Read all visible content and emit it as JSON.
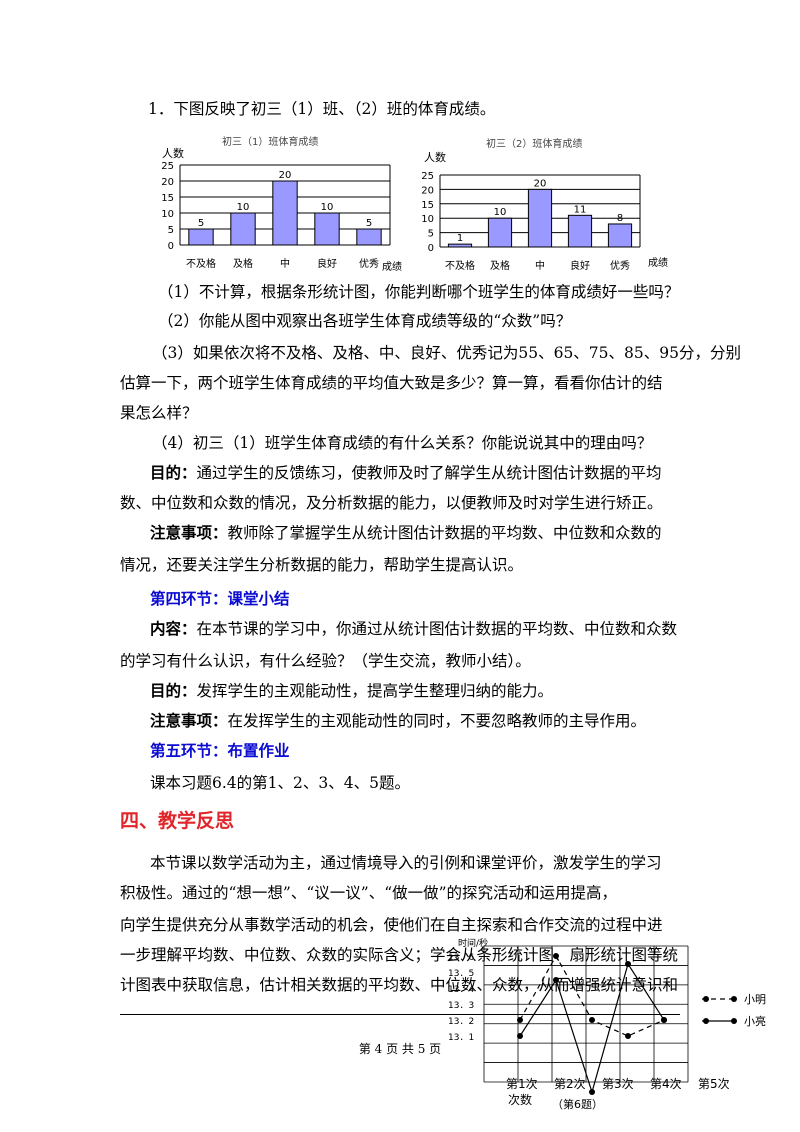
{
  "q1": {
    "title": "1．下图反映了初三（1）班、（2）班的体育成绩。",
    "sub1": "（1）不计算，根据条形统计图，你能判断哪个班学生的体育成绩好一些吗？",
    "sub2": "（2）你能从图中观察出各班学生体育成绩等级的“众数”吗？",
    "sub3_line1": "（3）如果依次将不及格、及格、中、良好、优秀记为55、65、75、85、95分，分别",
    "sub3_line2": "估算一下，两个班学生体育成绩的平均值大致是多少？算一算，看看你估计的结",
    "sub3_line3": "果怎么样？",
    "sub4": "（4）初三（1）班学生体育成绩的有什么关系？你能说说其中的理由吗？"
  },
  "purpose1": {
    "label": "目的：",
    "line1": "通过学生的反馈练习，使教师及时了解学生从统计图估计数据的平均",
    "line2": "数、中位数和众数的情况，及分析数据的能力，以便教师及时对学生进行矫正。"
  },
  "note1": {
    "label": "注意事项：",
    "line1": "教师除了掌握学生从统计图估计数据的平均数、中位数和众数的",
    "line2": "情况，还要关注学生分析数据的能力，帮助学生提高认识。"
  },
  "section4": {
    "heading": "第四环节：课堂小结",
    "content_label": "内容：",
    "content_line1": "在本节课的学习中，你通过从统计图估计数据的平均数、中位数和众数",
    "content_line2": "的学习有什么认识，有什么经验？（学生交流，教师小结）。",
    "purpose_label": "目的：",
    "purpose_text": "发挥学生的主观能动性，提高学生整理归纳的能力。",
    "note_label": "注意事项：",
    "note_text": "在发挥学生的主观能动性的同时，不要忽略教师的主导作用。"
  },
  "section5": {
    "heading": "第五环节：布置作业",
    "text": "课本习题6.4的第1、2、3、4、5题。"
  },
  "reflection": {
    "heading": "四、教学反思",
    "line1": "本节课以数学活动为主，通过情境导入的引例和课堂评价，激发学生的学习",
    "line2": "积极性。通过的“想一想”、“议一议”、“做一做”的探究活动和运用提高，",
    "line3": "向学生提供充分从事数学活动的机会，使他们在自主探索和合作交流的过程中进",
    "line4": "一步理解平均数、中位数、众数的实际含义；学会从条形统计图、扇形统计图等统",
    "line5": "计图表中获取信息，估计相关数据的平均数、中位数、众数，从而增强统计意识和"
  },
  "footer": {
    "page": "第 4 页 共 5 页"
  },
  "chart_data": [
    {
      "type": "bar",
      "title": "初三（1）班体育成绩",
      "ylabel": "人数",
      "xlabel": "成绩",
      "categories": [
        "不及格",
        "及格",
        "中",
        "良好",
        "优秀"
      ],
      "values": [
        5,
        10,
        20,
        10,
        5
      ],
      "data_labels": [
        "5",
        "10",
        "20",
        "10",
        "5"
      ],
      "yticks": [
        "0",
        "5",
        "10",
        "15",
        "20",
        "25"
      ],
      "ylim": [
        0,
        25
      ],
      "color": "#9999ff",
      "grid": true
    },
    {
      "type": "bar",
      "title": "初三（2）班体育成绩",
      "ylabel": "人数",
      "xlabel": "成绩",
      "categories": [
        "不及格",
        "及格",
        "中",
        "良好",
        "优秀"
      ],
      "values": [
        1,
        10,
        20,
        11,
        8
      ],
      "data_labels": [
        "1",
        "10",
        "20",
        "11",
        "8"
      ],
      "yticks": [
        "0",
        "5",
        "10",
        "15",
        "20",
        "25"
      ],
      "ylim": [
        0,
        25
      ],
      "color": "#9999ff",
      "grid": true
    },
    {
      "type": "line",
      "ylabel": "时间/秒",
      "xlabel": "次数",
      "caption": "（第6题）",
      "categories": [
        "第1次",
        "第2次",
        "第3次",
        "第4次",
        "第5次"
      ],
      "yticks": [
        "13",
        "13．1",
        "13．2",
        "13．3",
        "13．4",
        "13．5",
        "13．6"
      ],
      "series": [
        {
          "name": "小明",
          "style": "dashed",
          "values": [
            13.2,
            13.6,
            13.2,
            13.1,
            13.2
          ]
        },
        {
          "name": "小亮",
          "style": "solid",
          "values": [
            13.2,
            13.6,
            13.2,
            13.1,
            13.2
          ]
        }
      ]
    }
  ]
}
